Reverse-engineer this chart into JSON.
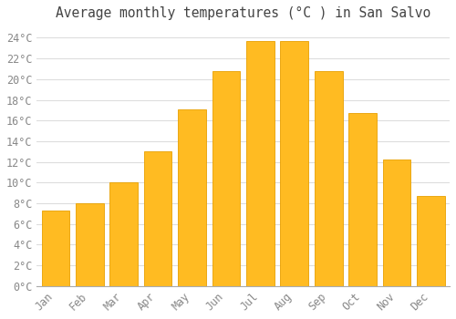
{
  "title": "Average monthly temperatures (°C ) in San Salvo",
  "months": [
    "Jan",
    "Feb",
    "Mar",
    "Apr",
    "May",
    "Jun",
    "Jul",
    "Aug",
    "Sep",
    "Oct",
    "Nov",
    "Dec"
  ],
  "values": [
    7.3,
    8.0,
    10.0,
    13.0,
    17.1,
    20.8,
    23.7,
    23.7,
    20.8,
    16.7,
    12.2,
    8.7
  ],
  "bar_color": "#FFBB22",
  "bar_edge_color": "#E8A000",
  "background_color": "#FFFFFF",
  "plot_bg_color": "#FFFFFF",
  "grid_color": "#DDDDDD",
  "tick_label_color": "#888888",
  "title_color": "#444444",
  "ylim": [
    0,
    25
  ],
  "ytick_max": 24,
  "ytick_step": 2,
  "title_fontsize": 10.5,
  "tick_fontsize": 8.5,
  "bar_width": 0.82
}
